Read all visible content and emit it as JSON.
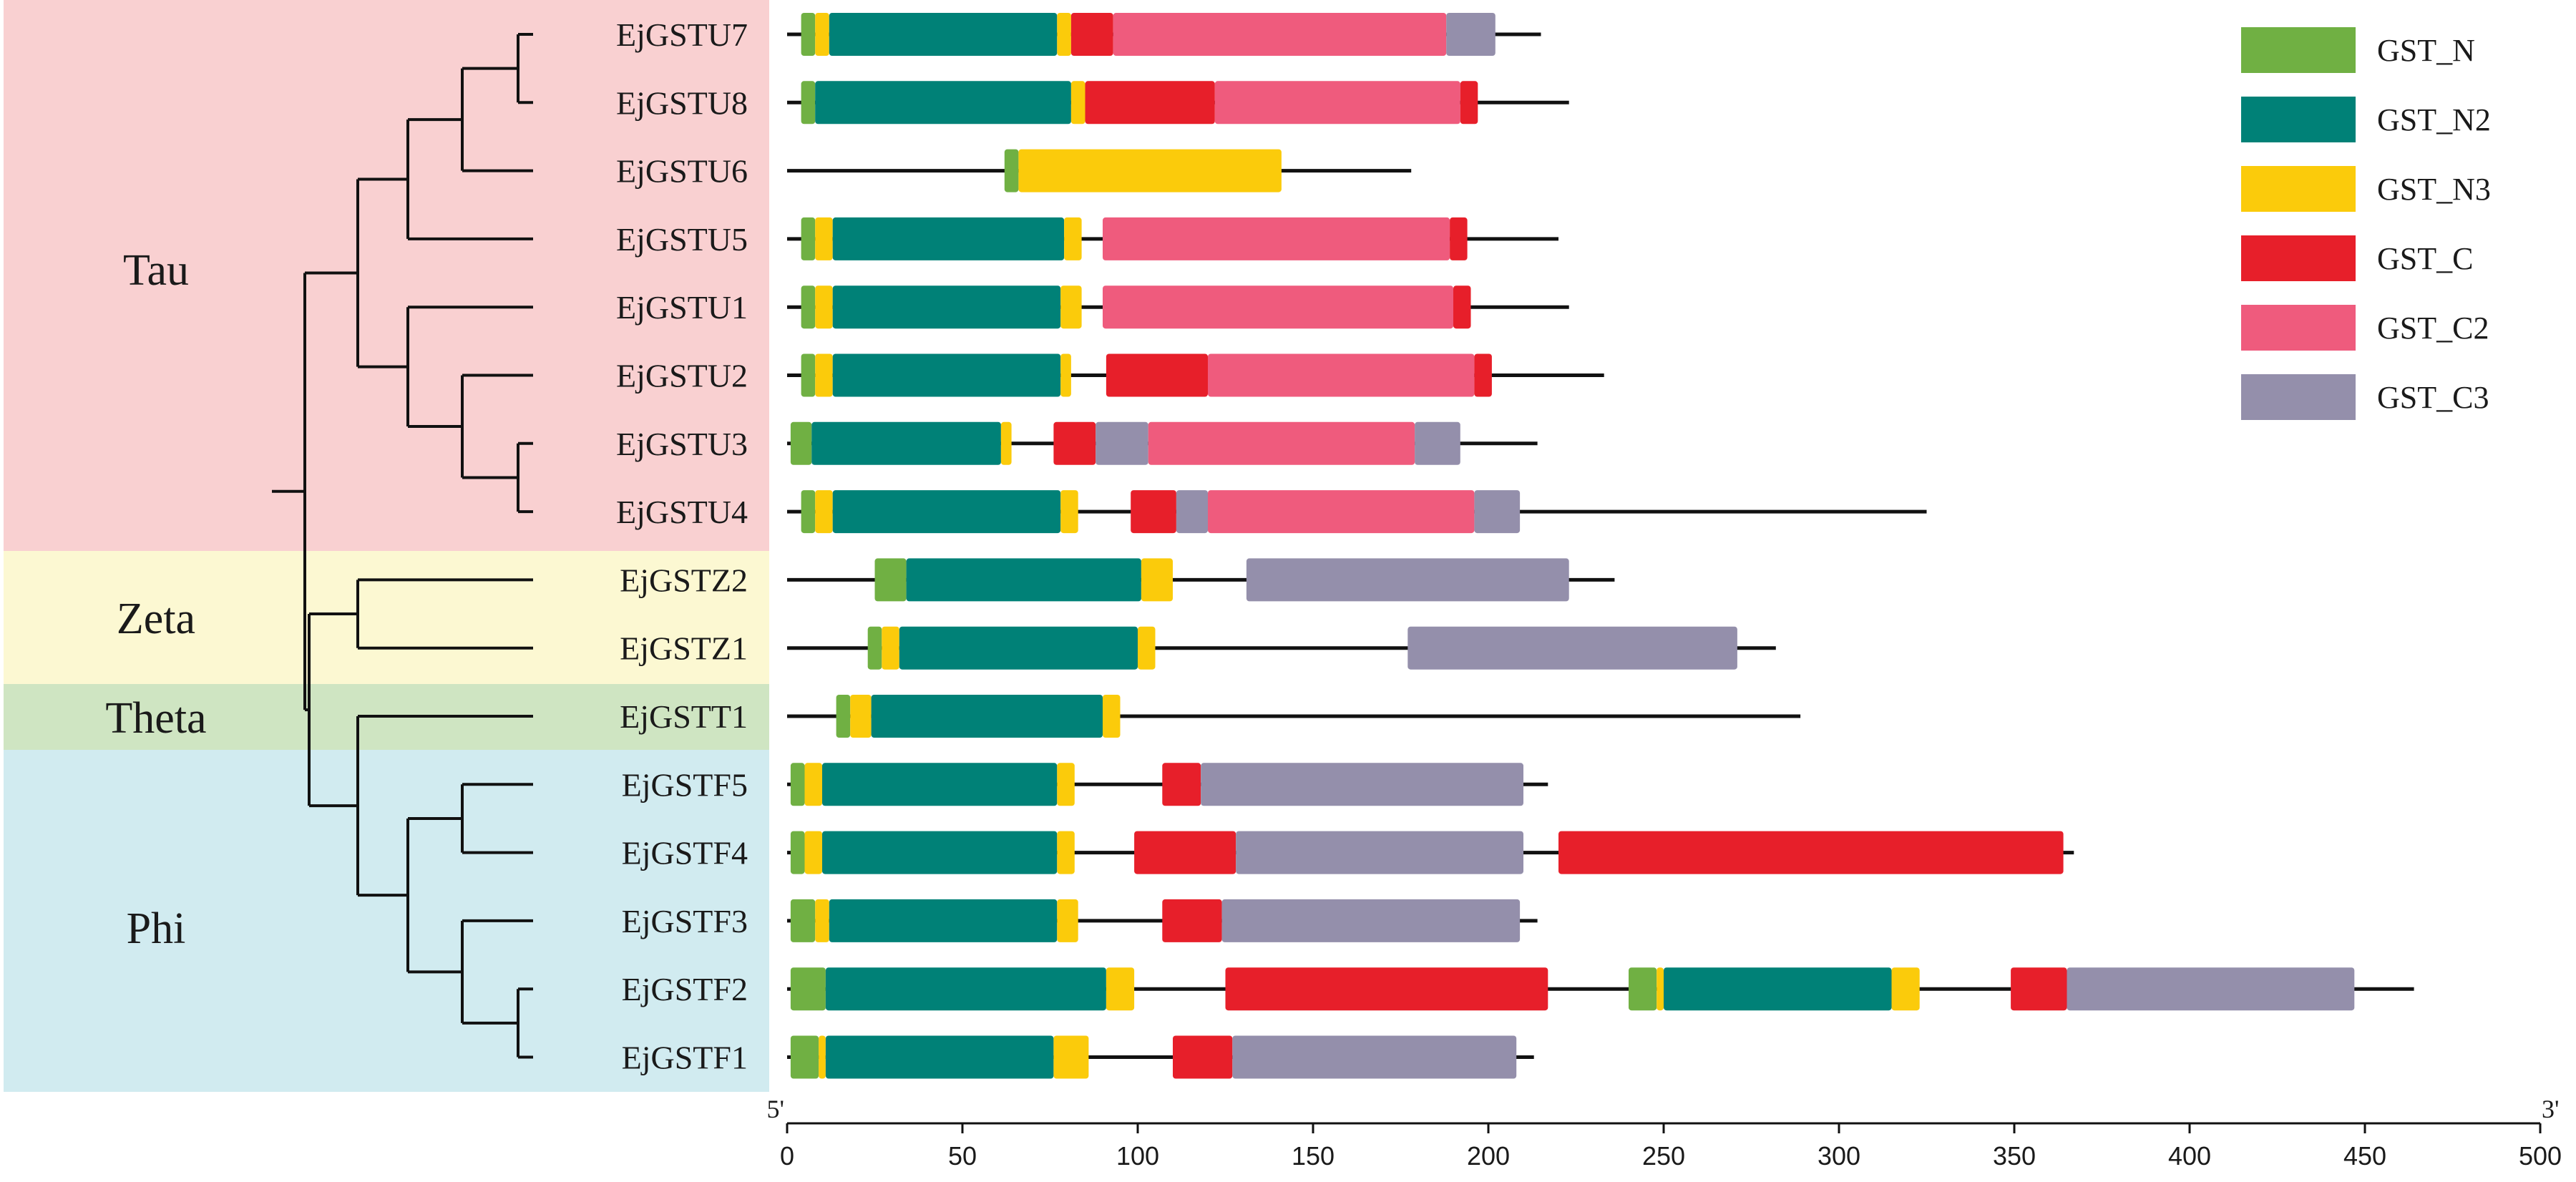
{
  "figure": {
    "axis": {
      "min": 0,
      "max": 500,
      "ticks": [
        0,
        50,
        100,
        150,
        200,
        250,
        300,
        350,
        400,
        450,
        500
      ],
      "start_label": "5'",
      "end_label": "3'"
    },
    "clades": [
      {
        "name": "Tau",
        "color": "#f9d0d1",
        "genes": [
          "EjGSTU7",
          "EjGSTU8",
          "EjGSTU6",
          "EjGSTU5",
          "EjGSTU1",
          "EjGSTU2",
          "EjGSTU3",
          "EjGSTU4"
        ]
      },
      {
        "name": "Zeta",
        "color": "#fcf8d2",
        "genes": [
          "EjGSTZ2",
          "EjGSTZ1"
        ]
      },
      {
        "name": "Theta",
        "color": "#cfe5c2",
        "genes": [
          "EjGSTT1"
        ]
      },
      {
        "name": "Phi",
        "color": "#d1ebf0",
        "genes": [
          "EjGSTF5",
          "EjGSTF4",
          "EjGSTF3",
          "EjGSTF2",
          "EjGSTF1"
        ]
      }
    ],
    "legend": [
      {
        "key": "GST_N",
        "label": "GST_N",
        "color": "#70b043"
      },
      {
        "key": "GST_N2",
        "label": "GST_N2",
        "color": "#008177"
      },
      {
        "key": "GST_N3",
        "label": "GST_N3",
        "color": "#fbcb0b"
      },
      {
        "key": "GST_C",
        "label": "GST_C",
        "color": "#e71f2a"
      },
      {
        "key": "GST_C2",
        "label": "GST_C2",
        "color": "#ef5b7d"
      },
      {
        "key": "GST_C3",
        "label": "GST_C3",
        "color": "#948fab"
      }
    ],
    "genes": [
      {
        "name": "EjGSTU7",
        "length": 215,
        "domains": [
          [
            "GST_N",
            4,
            8
          ],
          [
            "GST_N3",
            8,
            12
          ],
          [
            "GST_N2",
            12,
            77
          ],
          [
            "GST_N3",
            77,
            81
          ],
          [
            "GST_C",
            81,
            93
          ],
          [
            "GST_C2",
            93,
            188
          ],
          [
            "GST_C3",
            188,
            202
          ]
        ]
      },
      {
        "name": "EjGSTU8",
        "length": 223,
        "domains": [
          [
            "GST_N",
            4,
            8
          ],
          [
            "GST_N2",
            8,
            81
          ],
          [
            "GST_N3",
            81,
            85
          ],
          [
            "GST_C",
            85,
            122
          ],
          [
            "GST_C2",
            122,
            192
          ],
          [
            "GST_C",
            192,
            197
          ]
        ]
      },
      {
        "name": "EjGSTU6",
        "length": 178,
        "domains": [
          [
            "GST_N",
            62,
            66
          ],
          [
            "GST_N3",
            66,
            141
          ]
        ]
      },
      {
        "name": "EjGSTU5",
        "length": 220,
        "domains": [
          [
            "GST_N",
            4,
            8
          ],
          [
            "GST_N3",
            8,
            13
          ],
          [
            "GST_N2",
            13,
            79
          ],
          [
            "GST_N3",
            79,
            84
          ],
          [
            "GST_C2",
            90,
            189
          ],
          [
            "GST_C",
            189,
            194
          ]
        ]
      },
      {
        "name": "EjGSTU1",
        "length": 223,
        "domains": [
          [
            "GST_N",
            4,
            8
          ],
          [
            "GST_N3",
            8,
            13
          ],
          [
            "GST_N2",
            13,
            78
          ],
          [
            "GST_N3",
            78,
            84
          ],
          [
            "GST_C2",
            90,
            190
          ],
          [
            "GST_C",
            190,
            195
          ]
        ]
      },
      {
        "name": "EjGSTU2",
        "length": 233,
        "domains": [
          [
            "GST_N",
            4,
            8
          ],
          [
            "GST_N3",
            8,
            13
          ],
          [
            "GST_N2",
            13,
            78
          ],
          [
            "GST_N3",
            78,
            81
          ],
          [
            "GST_C",
            91,
            120
          ],
          [
            "GST_C2",
            120,
            196
          ],
          [
            "GST_C",
            196,
            201
          ]
        ]
      },
      {
        "name": "EjGSTU3",
        "length": 214,
        "domains": [
          [
            "GST_N",
            1,
            7
          ],
          [
            "GST_N2",
            7,
            61
          ],
          [
            "GST_N3",
            61,
            64
          ],
          [
            "GST_C",
            76,
            88
          ],
          [
            "GST_C3",
            88,
            103
          ],
          [
            "GST_C2",
            103,
            179
          ],
          [
            "GST_C3",
            179,
            192
          ]
        ]
      },
      {
        "name": "EjGSTU4",
        "length": 325,
        "domains": [
          [
            "GST_N",
            4,
            8
          ],
          [
            "GST_N3",
            8,
            13
          ],
          [
            "GST_N2",
            13,
            78
          ],
          [
            "GST_N3",
            78,
            83
          ],
          [
            "GST_C",
            98,
            111
          ],
          [
            "GST_C3",
            111,
            120
          ],
          [
            "GST_C2",
            120,
            196
          ],
          [
            "GST_C3",
            196,
            209
          ]
        ]
      },
      {
        "name": "EjGSTZ2",
        "length": 236,
        "domains": [
          [
            "GST_N",
            25,
            34
          ],
          [
            "GST_N2",
            34,
            101
          ],
          [
            "GST_N3",
            101,
            110
          ],
          [
            "GST_C3",
            131,
            223
          ]
        ]
      },
      {
        "name": "EjGSTZ1",
        "length": 282,
        "domains": [
          [
            "GST_N",
            23,
            27
          ],
          [
            "GST_N3",
            27,
            32
          ],
          [
            "GST_N2",
            32,
            100
          ],
          [
            "GST_N3",
            100,
            105
          ],
          [
            "GST_C3",
            177,
            271
          ]
        ]
      },
      {
        "name": "EjGSTT1",
        "length": 289,
        "domains": [
          [
            "GST_N",
            14,
            18
          ],
          [
            "GST_N3",
            18,
            24
          ],
          [
            "GST_N2",
            24,
            90
          ],
          [
            "GST_N3",
            90,
            95
          ]
        ]
      },
      {
        "name": "EjGSTF5",
        "length": 217,
        "domains": [
          [
            "GST_N",
            1,
            5
          ],
          [
            "GST_N3",
            5,
            10
          ],
          [
            "GST_N2",
            10,
            77
          ],
          [
            "GST_N3",
            77,
            82
          ],
          [
            "GST_C",
            107,
            118
          ],
          [
            "GST_C3",
            118,
            210
          ]
        ]
      },
      {
        "name": "EjGSTF4",
        "length": 367,
        "domains": [
          [
            "GST_N",
            1,
            5
          ],
          [
            "GST_N3",
            5,
            10
          ],
          [
            "GST_N2",
            10,
            77
          ],
          [
            "GST_N3",
            77,
            82
          ],
          [
            "GST_C",
            99,
            128
          ],
          [
            "GST_C3",
            128,
            210
          ],
          [
            "GST_C",
            220,
            364
          ]
        ]
      },
      {
        "name": "EjGSTF3",
        "length": 214,
        "domains": [
          [
            "GST_N",
            1,
            8
          ],
          [
            "GST_N3",
            8,
            12
          ],
          [
            "GST_N2",
            12,
            77
          ],
          [
            "GST_N3",
            77,
            83
          ],
          [
            "GST_C",
            107,
            124
          ],
          [
            "GST_C3",
            124,
            209
          ]
        ]
      },
      {
        "name": "EjGSTF2",
        "length": 464,
        "domains": [
          [
            "GST_N",
            1,
            11
          ],
          [
            "GST_N2",
            11,
            91
          ],
          [
            "GST_N3",
            91,
            99
          ],
          [
            "GST_C",
            125,
            217
          ],
          [
            "GST_N",
            240,
            248
          ],
          [
            "GST_N3",
            248,
            250
          ],
          [
            "GST_N2",
            250,
            315
          ],
          [
            "GST_N3",
            315,
            323
          ],
          [
            "GST_C",
            349,
            365
          ],
          [
            "GST_C3",
            365,
            447
          ]
        ]
      },
      {
        "name": "EjGSTF1",
        "length": 213,
        "domains": [
          [
            "GST_N",
            1,
            9
          ],
          [
            "GST_N3",
            9,
            11
          ],
          [
            "GST_N2",
            11,
            76
          ],
          [
            "GST_N3",
            76,
            86
          ],
          [
            "GST_C",
            110,
            127
          ],
          [
            "GST_C3",
            127,
            208
          ]
        ]
      }
    ]
  }
}
